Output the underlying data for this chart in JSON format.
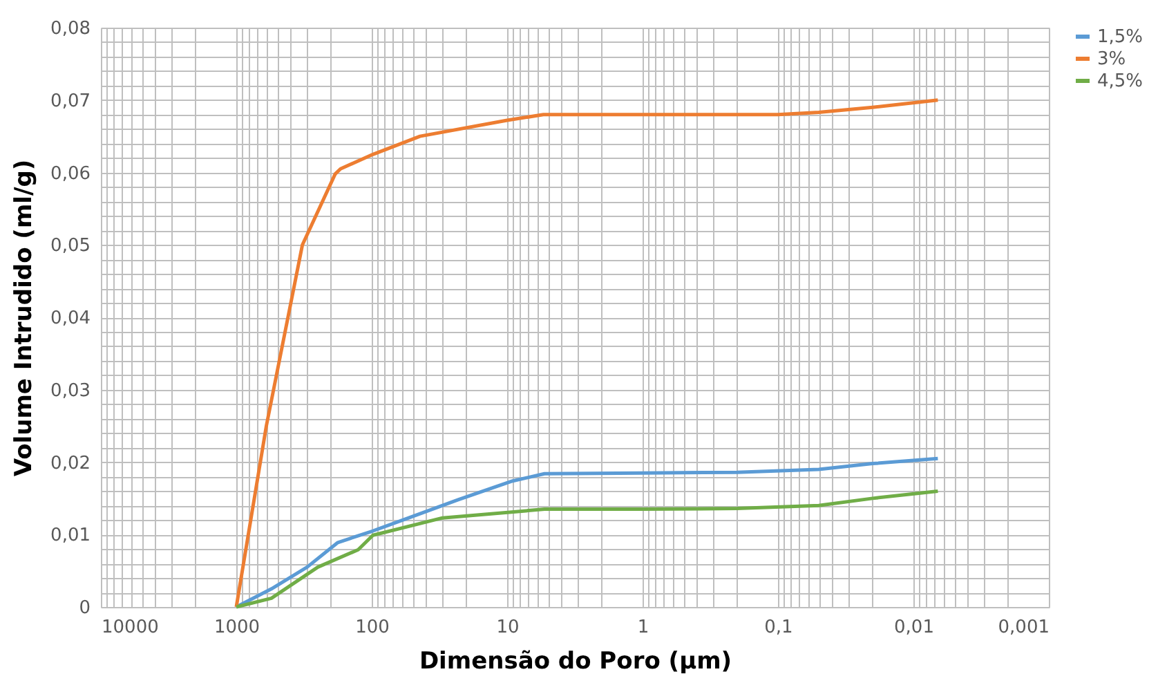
{
  "chart_data": {
    "type": "line",
    "xlabel": "Dimensão do Poro (µm)",
    "ylabel": "Volume Intrudido (ml/g)",
    "log": "x",
    "grid": true,
    "legend": "right",
    "marker": "none",
    "line_style": "solid",
    "xlim": [
      10000,
      0.001
    ],
    "xticks": [
      10000,
      1000,
      100,
      10,
      1,
      {
        "value": 0.1,
        "label": "0,1"
      },
      {
        "value": 0.01,
        "label": "0,01"
      },
      {
        "value": 0.001,
        "label": "0,001"
      }
    ],
    "ylim": [
      0,
      0.08
    ],
    "yticks": [
      0,
      {
        "value": 0.01,
        "label": "0,01"
      },
      {
        "value": 0.02,
        "label": "0,02"
      },
      {
        "value": 0.03,
        "label": "0,03"
      },
      {
        "value": 0.04,
        "label": "0,04"
      },
      {
        "value": 0.05,
        "label": "0,05"
      },
      {
        "value": 0.06,
        "label": "0,06"
      },
      {
        "value": 0.07,
        "label": "0,07"
      },
      {
        "value": 0.08,
        "label": "0,08"
      }
    ],
    "series": [
      {
        "name": "1,5%",
        "color": "#5b9bd5",
        "x": [
          1000,
          550,
          300,
          178,
          98,
          50,
          23,
          9.1,
          5.3,
          1,
          0.2,
          0.05,
          0.02,
          0.0066
        ],
        "values": [
          0,
          0.0025,
          0.0055,
          0.0089,
          0.0105,
          0.0125,
          0.0148,
          0.0174,
          0.0184,
          0.0185,
          0.0186,
          0.019,
          0.0198,
          0.0205
        ]
      },
      {
        "name": "3%",
        "color": "#ed7d31",
        "x": [
          1000,
          600,
          325,
          186,
          170,
          98,
          44,
          10,
          5.4,
          1,
          0.1,
          0.05,
          0.02,
          0.0066
        ],
        "values": [
          0,
          0.025,
          0.05,
          0.0598,
          0.0605,
          0.0625,
          0.065,
          0.0672,
          0.068,
          0.068,
          0.068,
          0.0683,
          0.069,
          0.07
        ]
      },
      {
        "name": "4,5%",
        "color": "#70ad47",
        "x": [
          1000,
          550,
          250,
          126,
          98,
          30,
          5.3,
          1,
          0.2,
          0.05,
          0.02,
          0.0066
        ],
        "values": [
          0,
          0.0012,
          0.0055,
          0.0079,
          0.0099,
          0.0123,
          0.0135,
          0.0135,
          0.0136,
          0.014,
          0.015,
          0.016
        ]
      }
    ]
  }
}
